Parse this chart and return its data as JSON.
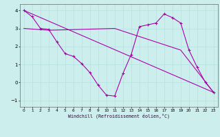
{
  "xlabel": "Windchill (Refroidissement éolien,°C)",
  "bg_color": "#cceeed",
  "grid_color": "#aadddd",
  "line_color": "#aa00aa",
  "xlim": [
    -0.5,
    23.5
  ],
  "ylim": [
    -1.35,
    4.35
  ],
  "xticks": [
    0,
    1,
    2,
    3,
    4,
    5,
    6,
    7,
    8,
    9,
    10,
    11,
    12,
    13,
    14,
    15,
    16,
    17,
    18,
    19,
    20,
    21,
    22,
    23
  ],
  "yticks": [
    -1,
    0,
    1,
    2,
    3,
    4
  ],
  "line1_x": [
    0,
    1,
    2,
    3,
    4,
    5,
    6,
    7,
    8,
    9,
    10,
    11,
    12,
    13,
    14,
    15,
    16,
    17,
    18,
    19,
    20,
    21,
    22,
    23
  ],
  "line1_y": [
    4.0,
    3.65,
    3.0,
    2.95,
    2.25,
    1.6,
    1.45,
    1.05,
    0.55,
    -0.15,
    -0.7,
    -0.75,
    0.5,
    1.55,
    3.1,
    3.2,
    3.3,
    3.8,
    3.6,
    3.3,
    1.8,
    0.85,
    0.0,
    -0.55
  ],
  "line2_x": [
    0,
    23
  ],
  "line2_y": [
    4.0,
    -0.55
  ],
  "line3_x": [
    0,
    3,
    11,
    19,
    23
  ],
  "line3_y": [
    3.0,
    2.9,
    3.0,
    1.8,
    -0.55
  ]
}
